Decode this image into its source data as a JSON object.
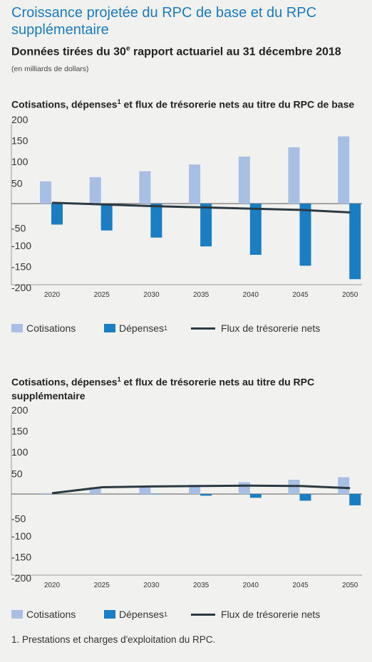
{
  "header": {
    "title": "Croissance projetée du RPC de base et du RPC supplémentaire",
    "subtitle_prefix": "Données tirées du 30",
    "subtitle_sup": "e",
    "subtitle_suffix": " rapport actuariel au 31 décembre 2018",
    "unit_note": "(en milliards de dollars)"
  },
  "legend_labels": {
    "contributions": "Cotisations",
    "expenses": "Dépenses",
    "expenses_sup": "1",
    "net": "Flux de trésorerie nets"
  },
  "colors": {
    "contributions": "#a6bfe3",
    "expenses": "#1c7ec2",
    "net": "#2b3a42"
  },
  "footnote": "1.  Prestations et charges d'exploitation du RPC.",
  "chart_data": [
    {
      "type": "bar",
      "title_part1": "Cotisations, dépenses",
      "title_sup": "1",
      "title_part2": " et flux de trésorerie nets au titre du RPC de base",
      "categories": [
        "2020",
        "2025",
        "2030",
        "2035",
        "2040",
        "2045",
        "2050"
      ],
      "yticks": [
        200,
        150,
        100,
        50,
        -50,
        -100,
        -150,
        -200
      ],
      "ylim": [
        -200,
        200
      ],
      "series": [
        {
          "name": "Cotisations",
          "type": "bar",
          "values": [
            53,
            63,
            77,
            93,
            112,
            134,
            160
          ]
        },
        {
          "name": "Dépenses",
          "type": "bar",
          "values": [
            -50,
            -64,
            -81,
            -102,
            -122,
            -148,
            -180
          ]
        },
        {
          "name": "Flux de trésorerie nets",
          "type": "line",
          "values": [
            2,
            -2,
            -6,
            -9,
            -12,
            -15,
            -21
          ]
        }
      ]
    },
    {
      "type": "bar",
      "title_part1": "Cotisations, dépenses",
      "title_sup": "1",
      "title_part2": " et flux de trésorerie nets au titre du RPC supplémentaire",
      "categories": [
        "2020",
        "2025",
        "2030",
        "2035",
        "2040",
        "2045",
        "2050"
      ],
      "yticks": [
        200,
        150,
        100,
        50,
        -50,
        -100,
        -150,
        -200
      ],
      "ylim": [
        -200,
        200
      ],
      "series": [
        {
          "name": "Cotisations",
          "type": "bar",
          "values": [
            2,
            16,
            19,
            22,
            28,
            34,
            40
          ]
        },
        {
          "name": "Dépenses",
          "type": "bar",
          "values": [
            0,
            0,
            -1,
            -4,
            -9,
            -16,
            -27
          ]
        },
        {
          "name": "Flux de trésorerie nets",
          "type": "line",
          "values": [
            2,
            16,
            18,
            19,
            20,
            19,
            14
          ]
        }
      ]
    }
  ]
}
